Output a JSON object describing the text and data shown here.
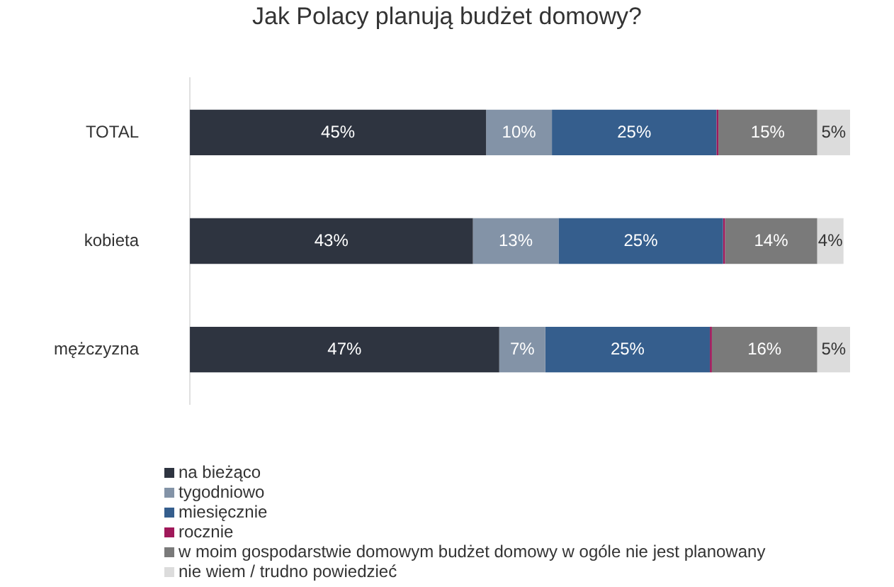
{
  "chart_data": {
    "type": "bar",
    "orientation": "horizontal",
    "stacked": true,
    "title": "Jak Polacy planują budżet domowy?",
    "categories": [
      "TOTAL",
      "kobieta",
      "mężczyzna"
    ],
    "legend": "bottom left",
    "series": [
      {
        "name": "na bieżąco",
        "color": "#2e3440",
        "values": [
          45,
          43,
          47
        ],
        "value_labels": [
          "45%",
          "43%",
          "47%"
        ]
      },
      {
        "name": "tygodniowo",
        "color": "#8393a7",
        "values": [
          10,
          13,
          7
        ],
        "value_labels": [
          "10%",
          "13%",
          "7%"
        ]
      },
      {
        "name": "miesięcznie",
        "color": "#355e8d",
        "values": [
          25,
          25,
          25
        ],
        "value_labels": [
          "25%",
          "25%",
          "25%"
        ]
      },
      {
        "name": "rocznie",
        "color": "#a0195a",
        "values": [
          0.3,
          0.3,
          0.3
        ],
        "value_labels": [
          null,
          null,
          null
        ]
      },
      {
        "name": "w moim gospodarstwie domowym budżet domowy w ogóle nie jest planowany",
        "color": "#7a7a7a",
        "values": [
          15,
          14,
          16
        ],
        "value_labels": [
          "15%",
          "14%",
          "16%"
        ]
      },
      {
        "name": "nie wiem / trudno powiedzieć",
        "color": "#dcdcdc",
        "values": [
          5,
          4,
          5
        ],
        "value_labels": [
          "5%",
          "4%",
          "5%"
        ]
      }
    ]
  }
}
